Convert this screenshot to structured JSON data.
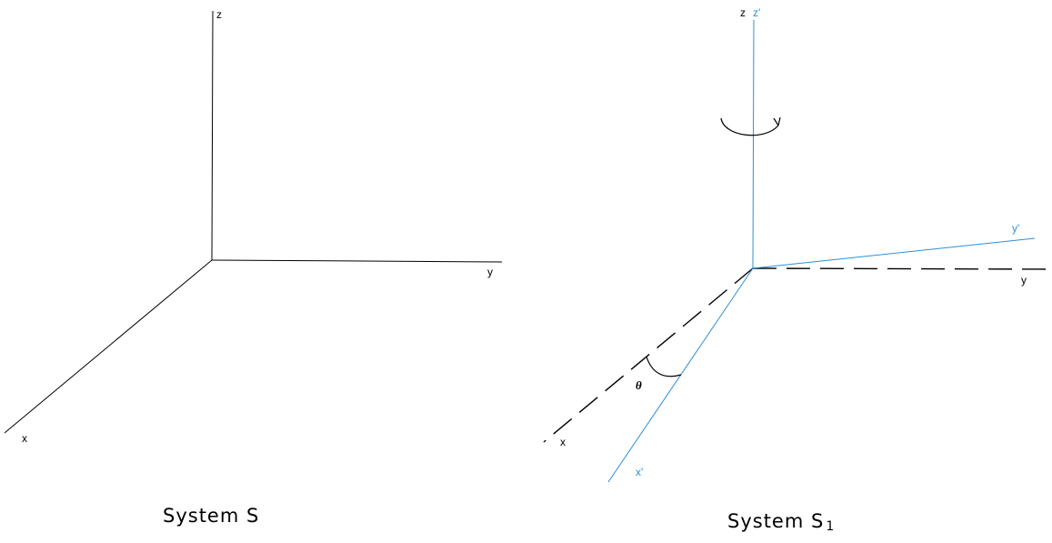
{
  "colors": {
    "original_axes": "#000000",
    "rotated_axes": "#2f8fd6"
  },
  "system_s": {
    "caption": "System S",
    "x_label": "x",
    "y_label": "y",
    "z_label": "z"
  },
  "system_s1": {
    "caption_main": "System S",
    "caption_sub": "1",
    "x_label": "x",
    "y_label": "y",
    "z_label": "z",
    "x_prime_label": "x'",
    "y_prime_label": "y'",
    "z_prime_label": "z'",
    "angle_label": "θ",
    "rotation_icon": "rotation-arrow-icon"
  }
}
